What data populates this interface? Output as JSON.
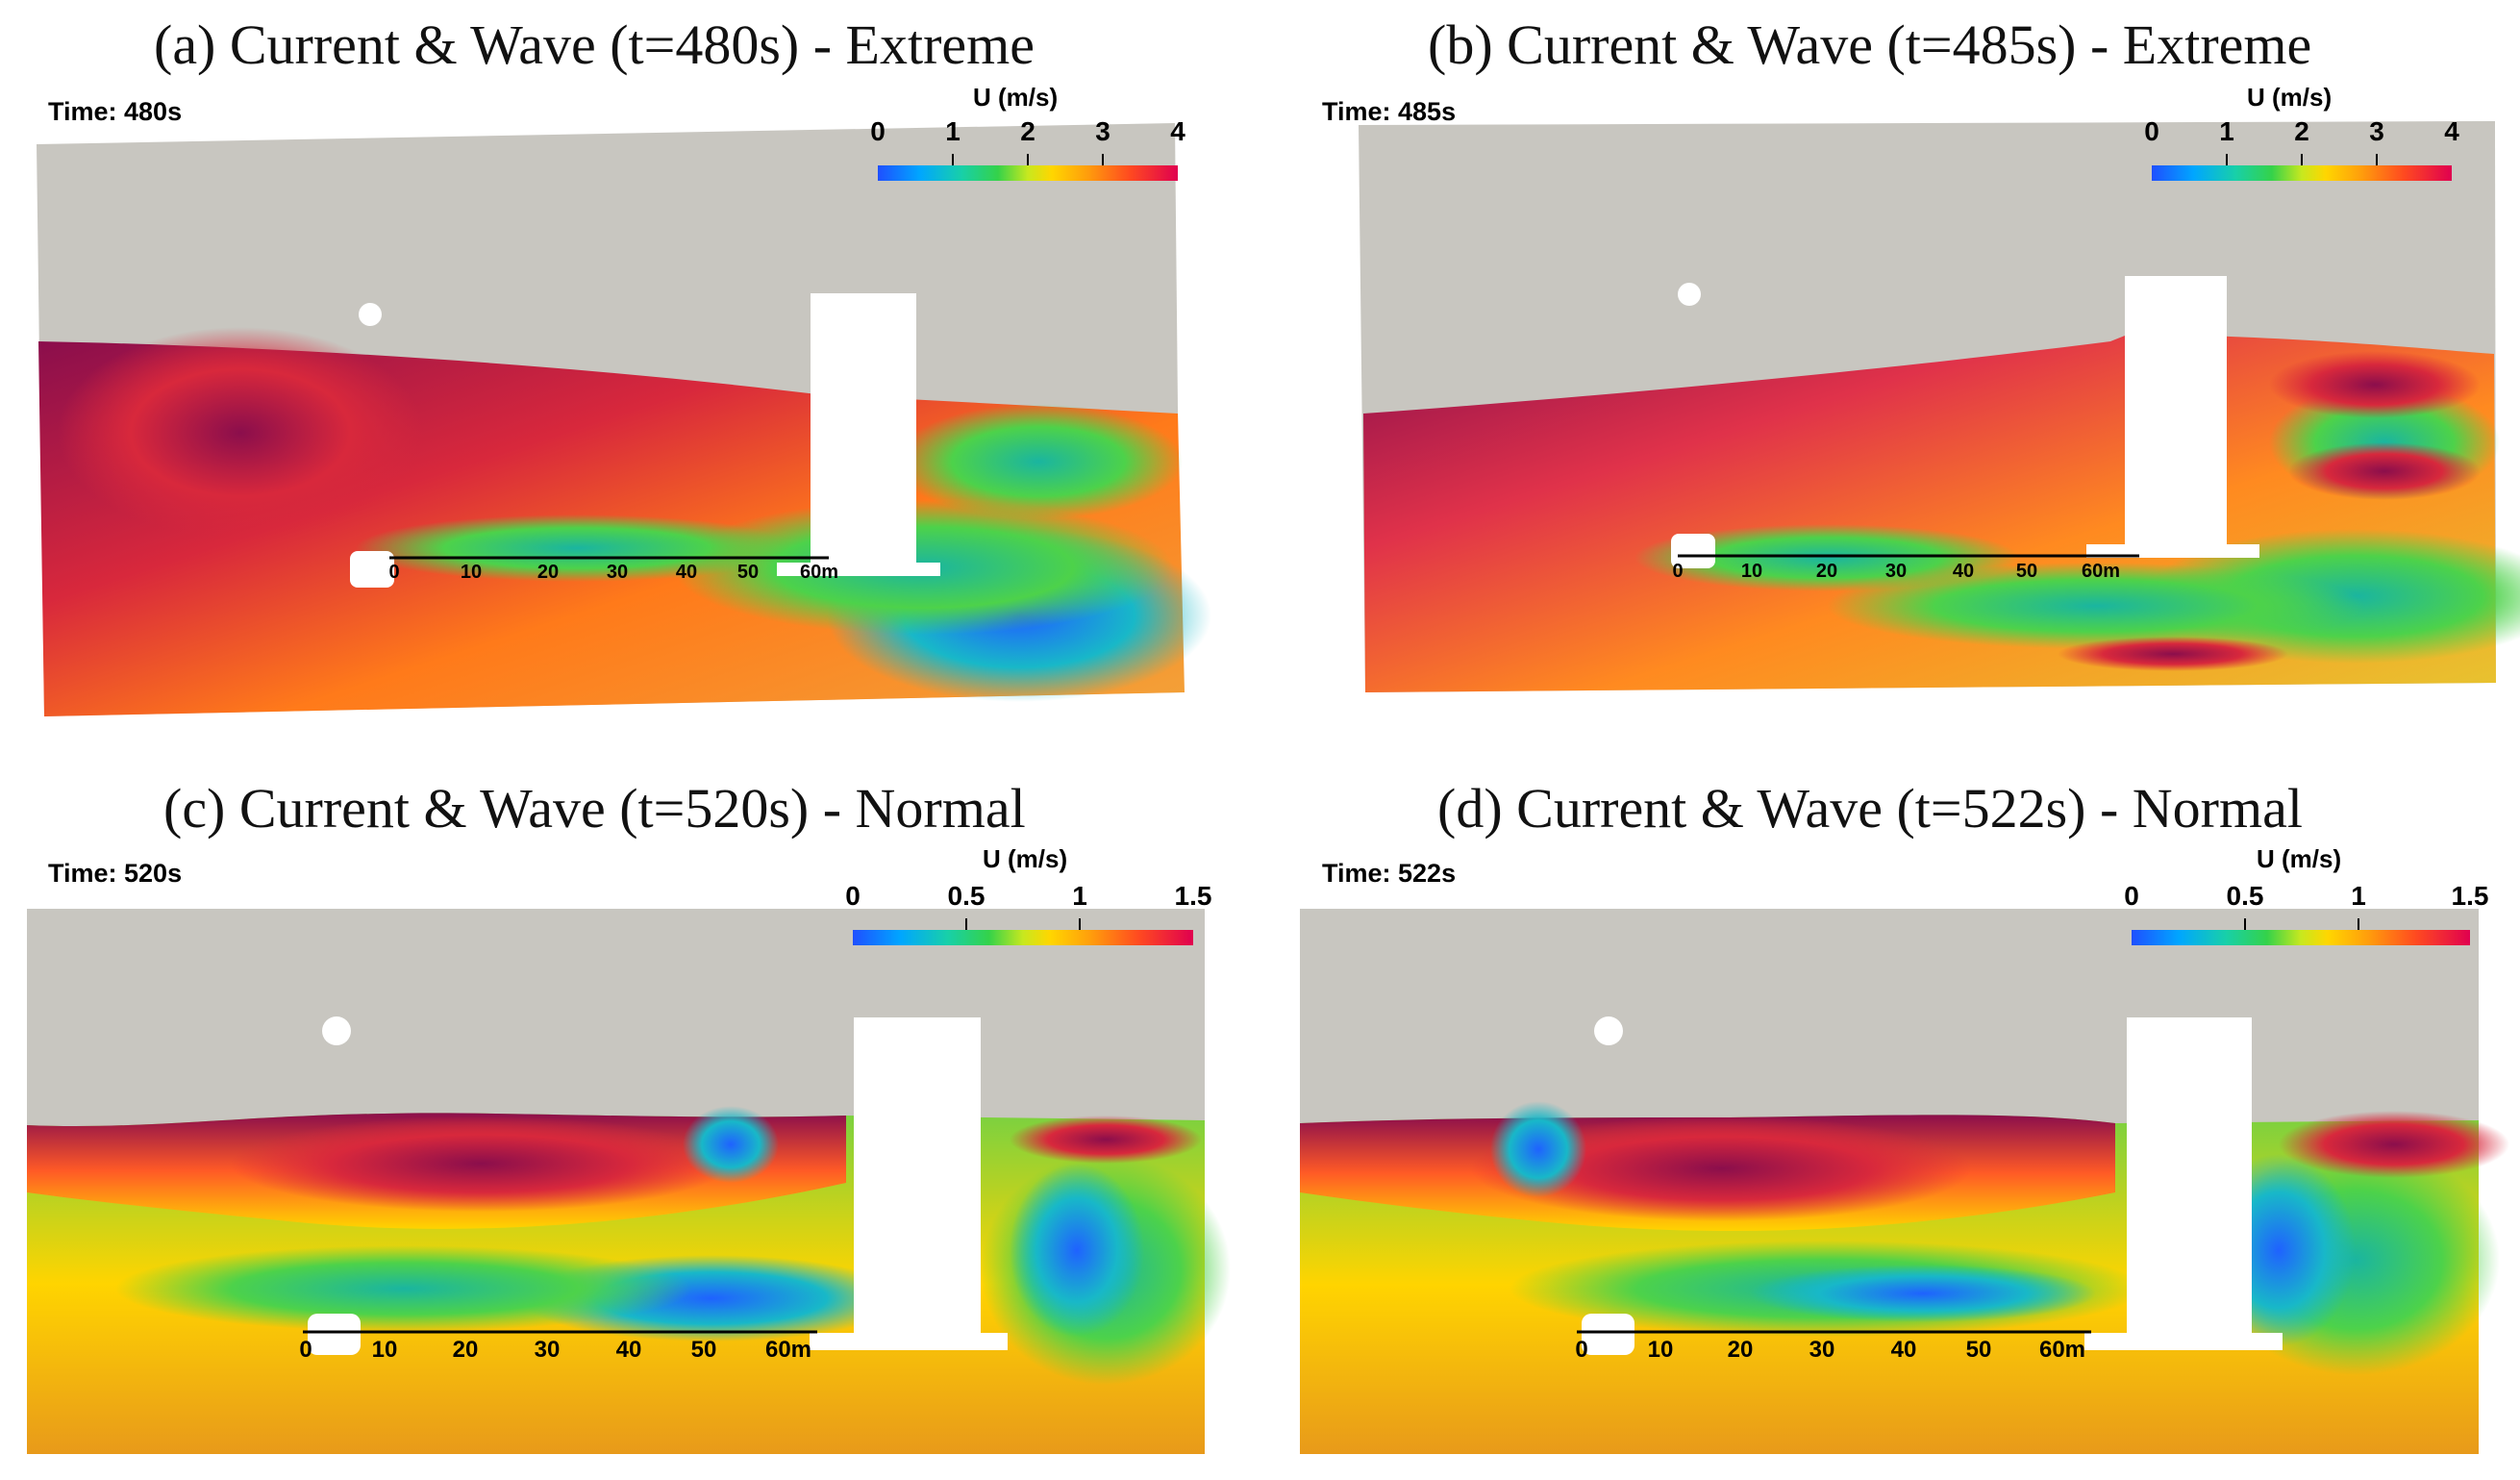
{
  "panels": [
    {
      "title": "(a) Current & Wave (t=480s) - Extreme",
      "time_label": "Time: 480s",
      "colorbar": {
        "title": "U (m/s)",
        "ticks": [
          "0",
          "1",
          "2",
          "3",
          "4"
        ]
      },
      "scale": {
        "ticks": [
          "0",
          "10",
          "20",
          "30",
          "40",
          "50",
          "60m"
        ]
      }
    },
    {
      "title": "(b) Current & Wave (t=485s) - Extreme",
      "time_label": "Time: 485s",
      "colorbar": {
        "title": "U (m/s)",
        "ticks": [
          "0",
          "1",
          "2",
          "3",
          "4"
        ]
      },
      "scale": {
        "ticks": [
          "0",
          "10",
          "20",
          "30",
          "40",
          "50",
          "60m"
        ]
      }
    },
    {
      "title": "(c) Current & Wave (t=520s) - Normal",
      "time_label": "Time: 520s",
      "colorbar": {
        "title": "U (m/s)",
        "ticks": [
          "0",
          "0.5",
          "1",
          "1.5"
        ]
      },
      "scale": {
        "ticks": [
          "0",
          "10",
          "20",
          "30",
          "40",
          "50",
          "60m"
        ]
      }
    },
    {
      "title": "(d) Current & Wave (t=522s) - Normal",
      "time_label": "Time: 522s",
      "colorbar": {
        "title": "U (m/s)",
        "ticks": [
          "0",
          "0.5",
          "1",
          "1.5"
        ]
      },
      "scale": {
        "ticks": [
          "0",
          "10",
          "20",
          "30",
          "40",
          "50",
          "60m"
        ]
      }
    }
  ],
  "colors": {
    "background_gray": "#c8c6c0",
    "structure": "#ffffff",
    "velocity_high": "#8b0e4c",
    "velocity_low": "#1f4fff"
  }
}
